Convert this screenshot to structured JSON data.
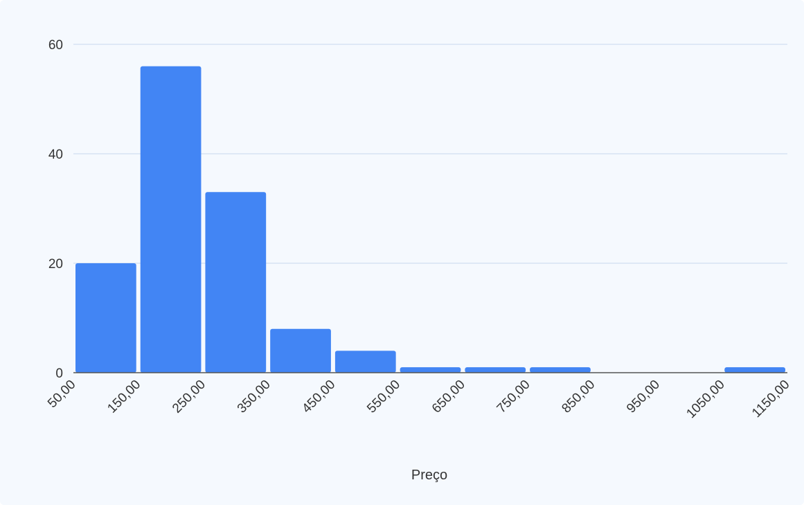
{
  "chart_data": {
    "type": "bar",
    "title": "",
    "xlabel": "Preço",
    "ylabel": "",
    "x_tick_labels": [
      "50,00",
      "150,00",
      "250,00",
      "350,00",
      "450,00",
      "550,00",
      "650,00",
      "750,00",
      "850,00",
      "950,00",
      "1050,00",
      "1150,00"
    ],
    "bins": [
      {
        "range": [
          50,
          150
        ],
        "count": 20
      },
      {
        "range": [
          150,
          250
        ],
        "count": 56
      },
      {
        "range": [
          250,
          350
        ],
        "count": 33
      },
      {
        "range": [
          350,
          450
        ],
        "count": 8
      },
      {
        "range": [
          450,
          550
        ],
        "count": 4
      },
      {
        "range": [
          550,
          650
        ],
        "count": 1
      },
      {
        "range": [
          650,
          750
        ],
        "count": 1
      },
      {
        "range": [
          750,
          850
        ],
        "count": 1
      },
      {
        "range": [
          850,
          950
        ],
        "count": 0
      },
      {
        "range": [
          950,
          1050
        ],
        "count": 0
      },
      {
        "range": [
          1050,
          1150
        ],
        "count": 1
      }
    ],
    "y_ticks": [
      0,
      20,
      40,
      60
    ],
    "xlim": [
      50,
      1150
    ],
    "ylim": [
      0,
      60
    ],
    "grid": true,
    "legend": "none",
    "colors": {
      "bar": "#4285f4",
      "background": "#f5f9fe",
      "grid": "#d6e2f3"
    }
  }
}
